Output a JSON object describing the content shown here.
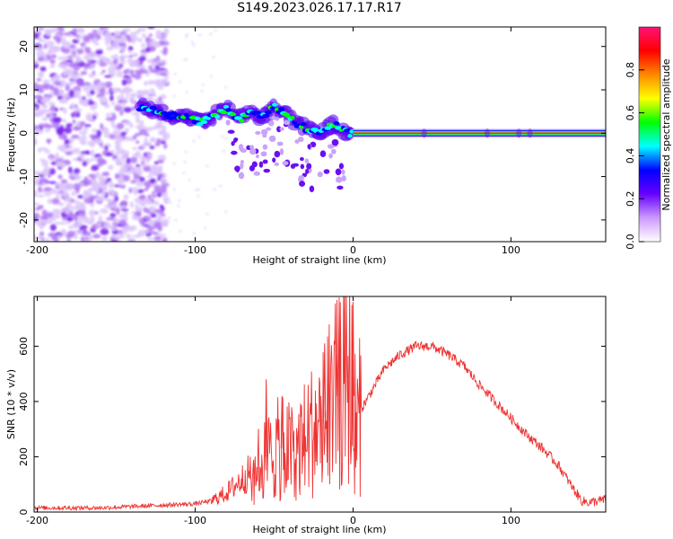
{
  "title": "S149.2023.026.17.17.R17",
  "chart_data": [
    {
      "type": "heatmap",
      "xlabel": "Height of straight line (km)",
      "ylabel": "Frequency (Hz)",
      "xlim": [
        -202,
        160
      ],
      "ylim": [
        -25,
        24.5
      ],
      "xticks": [
        -200,
        -100,
        0,
        100
      ],
      "yticks": [
        -20,
        -10,
        0,
        10,
        20
      ],
      "colorbar": {
        "label": "Normalized spectral amplitude",
        "range": [
          0,
          1
        ],
        "ticks": [
          "0.0",
          "0.2",
          "0.4",
          "0.6",
          "0.8"
        ],
        "colors": [
          "#ffffff",
          "#cc99ff",
          "#6600ff",
          "#0000ff",
          "#00ffff",
          "#00ff00",
          "#ffff00",
          "#ff8800",
          "#ff0000",
          "#ff1177"
        ]
      },
      "ridge": {
        "x": [
          -135,
          -125,
          -115,
          -105,
          -95,
          -88,
          -80,
          -72,
          -65,
          -58,
          -50,
          -42,
          -35,
          -28,
          -20,
          -12,
          -5,
          0,
          160
        ],
        "y": [
          6,
          5.5,
          4,
          3.5,
          2.5,
          4,
          6,
          3,
          5,
          3.5,
          6,
          4.5,
          2,
          1,
          0.5,
          2,
          0.3,
          0,
          0
        ]
      }
    },
    {
      "type": "line",
      "xlabel": "Height of straight line (km)",
      "ylabel": "SNR (10 * v/v)",
      "xlim": [
        -202,
        160
      ],
      "ylim": [
        0,
        780
      ],
      "xticks": [
        -200,
        -100,
        0,
        100
      ],
      "yticks": [
        0,
        200,
        400,
        600
      ],
      "color": "#ee3333",
      "envelope": {
        "x": [
          -202,
          -160,
          -120,
          -100,
          -90,
          -80,
          -70,
          -60,
          -55,
          -50,
          -45,
          -40,
          -35,
          -30,
          -25,
          -20,
          -15,
          -10,
          -5,
          -2,
          0,
          2,
          5,
          10,
          15,
          20,
          30,
          40,
          50,
          60,
          70,
          80,
          90,
          100,
          110,
          120,
          130,
          140,
          145,
          150,
          155,
          160
        ],
        "y": [
          15,
          15,
          25,
          30,
          40,
          70,
          120,
          170,
          200,
          220,
          230,
          220,
          230,
          270,
          300,
          320,
          380,
          420,
          450,
          470,
          420,
          280,
          370,
          420,
          470,
          520,
          570,
          600,
          600,
          570,
          530,
          460,
          400,
          340,
          280,
          230,
          170,
          80,
          40,
          35,
          40,
          45
        ]
      },
      "spikes": [
        {
          "x": -55,
          "y": 480
        },
        {
          "x": -45,
          "y": 420
        },
        {
          "x": -18,
          "y": 610
        },
        {
          "x": -10,
          "y": 570
        },
        {
          "x": 0,
          "y": 760
        }
      ]
    }
  ]
}
